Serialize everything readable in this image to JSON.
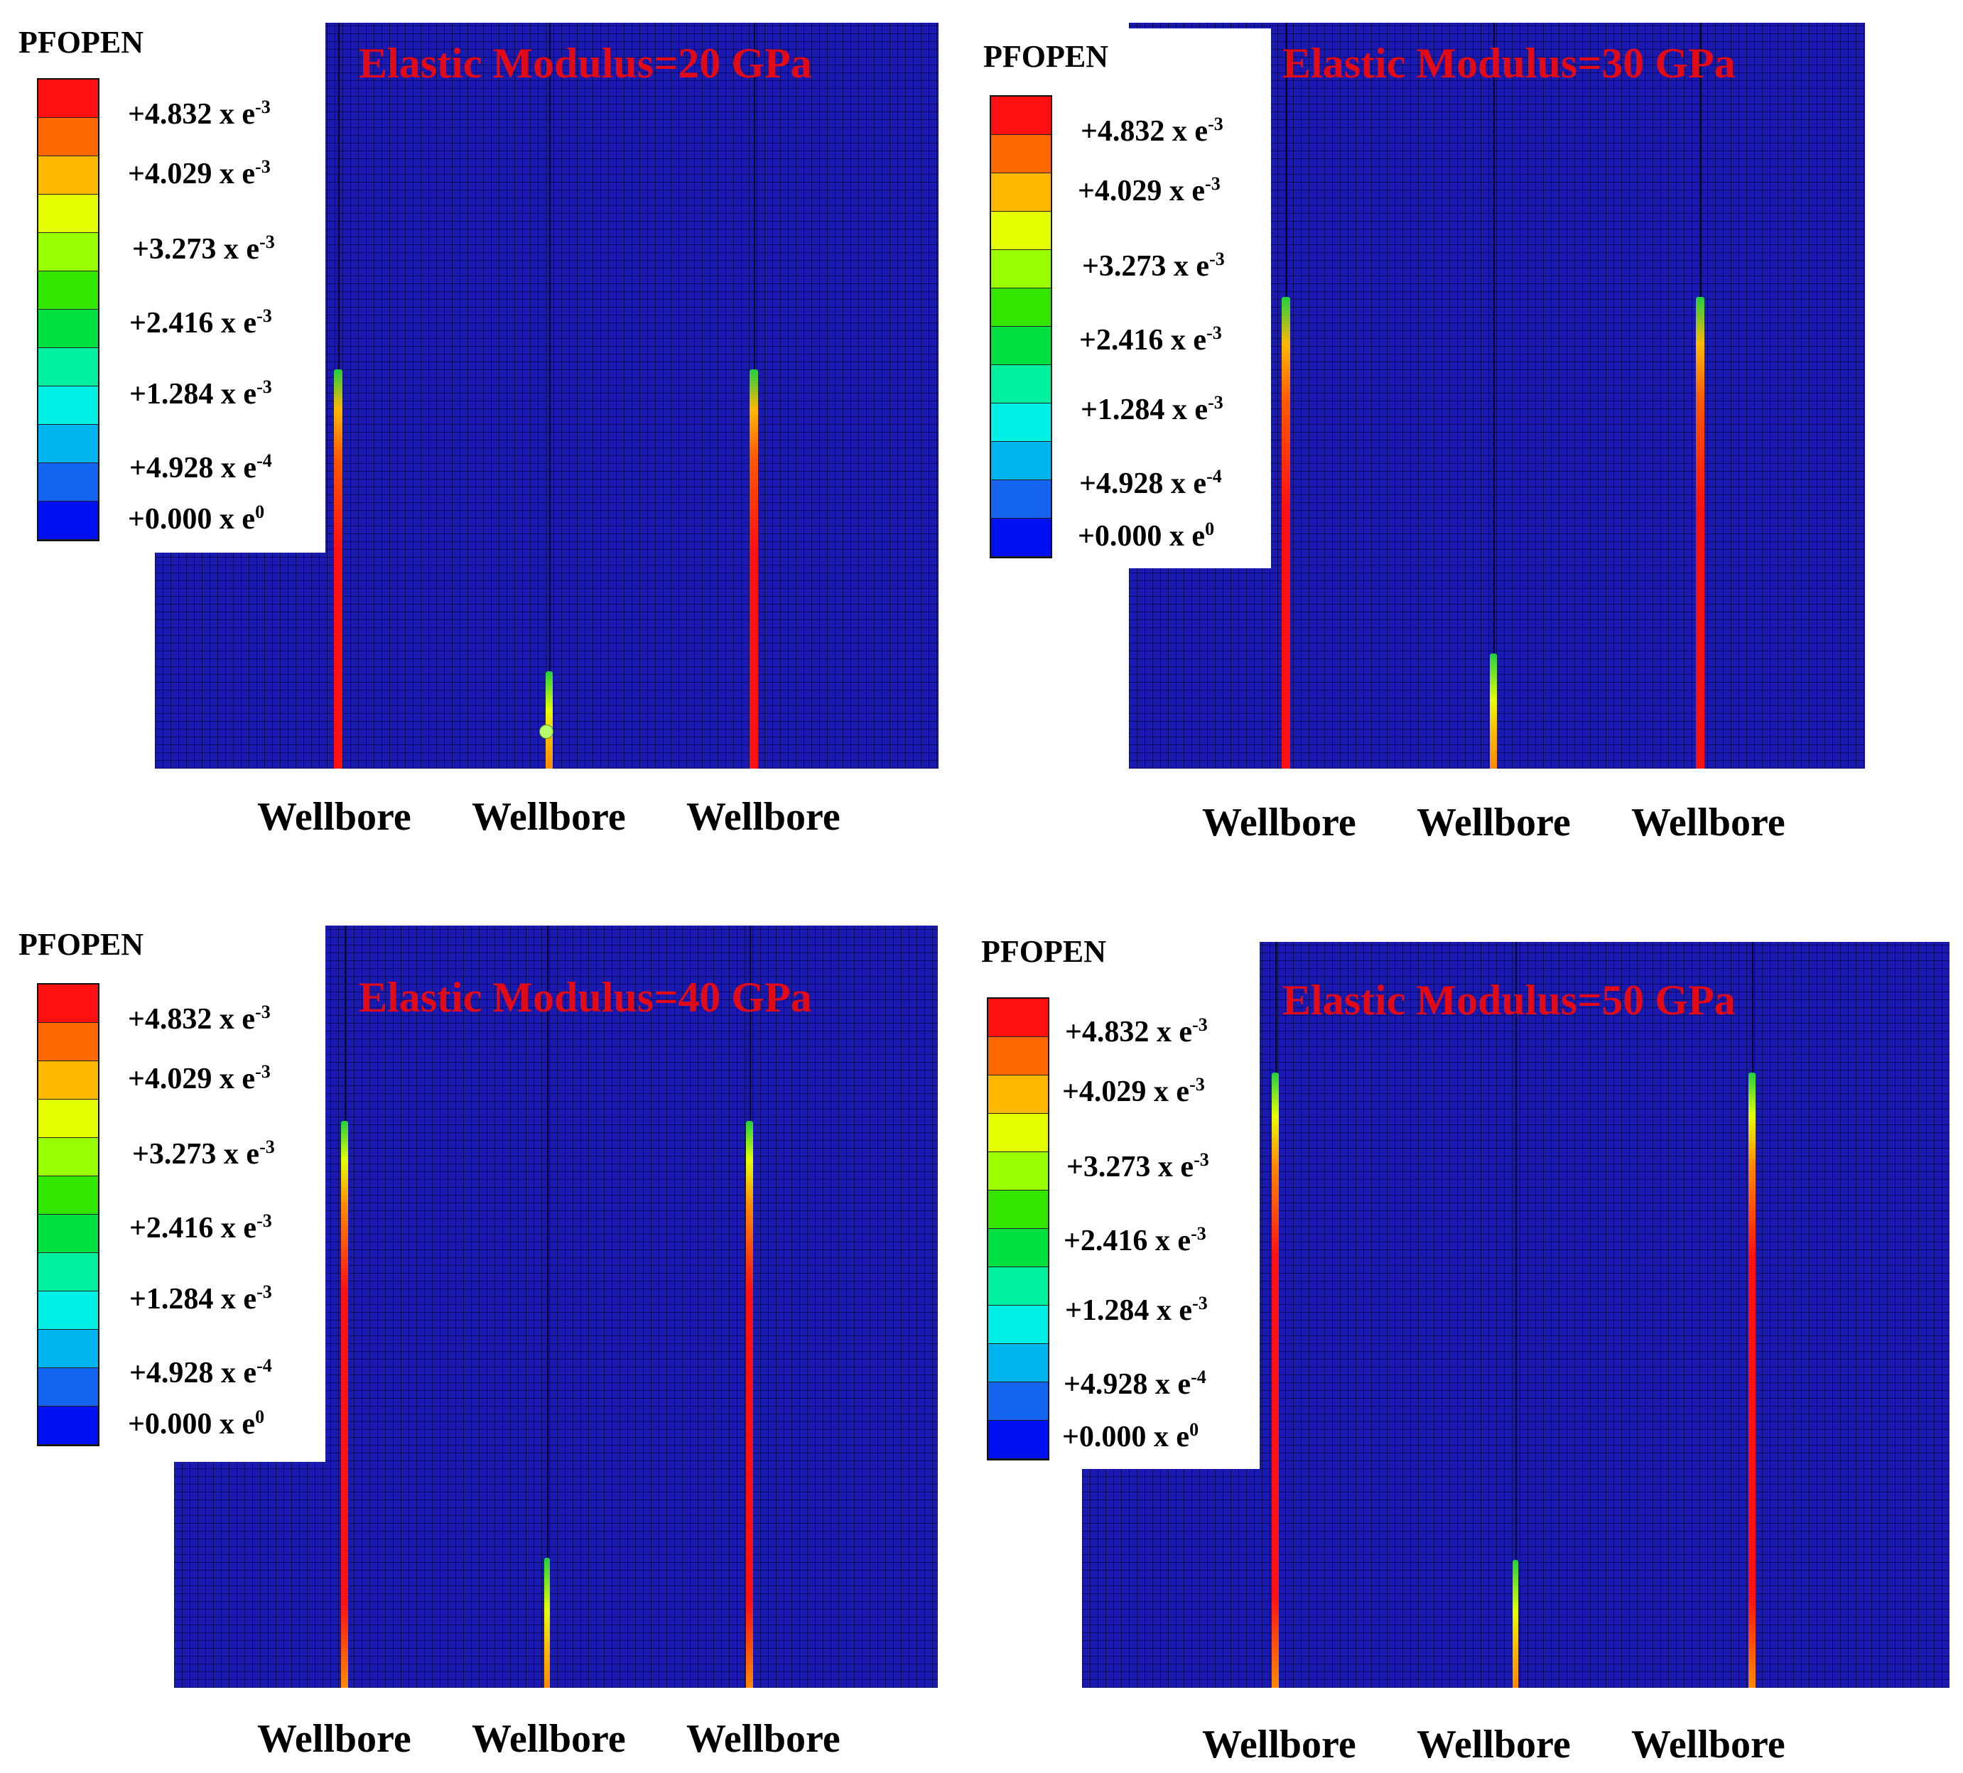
{
  "colors": {
    "mesh": "#1a1ab0",
    "title": "#e00b16",
    "scale": [
      "#ff1010",
      "#ff6a00",
      "#ffb800",
      "#e6ff00",
      "#99ff00",
      "#33e600",
      "#00e040",
      "#00f0a0",
      "#00f0e6",
      "#00b4f0",
      "#1464f0",
      "#0010f0"
    ]
  },
  "legend": {
    "title": "PFOPEN",
    "labels": [
      {
        "text": "+4.832  x e",
        "exp": "-3"
      },
      {
        "text": "+4.029  x e",
        "exp": "-3"
      },
      {
        "text": "+3.273 x e",
        "exp": "-3"
      },
      {
        "text": "+2.416 x e",
        "exp": "-3"
      },
      {
        "text": "+1.284 x e",
        "exp": "-3"
      },
      {
        "text": "+4.928 x e",
        "exp": "-4"
      },
      {
        "text": "+0.000 x e",
        "exp": "0"
      }
    ]
  },
  "well_label": "Wellbore",
  "panels": [
    {
      "title": "Elastic Modulus=20 GPa",
      "wellbores": [
        "Wellbore",
        "Wellbore",
        "Wellbore"
      ]
    },
    {
      "title": "Elastic Modulus=30 GPa",
      "wellbores": [
        "Wellbore",
        "Wellbore",
        "Wellbore"
      ]
    },
    {
      "title": "Elastic Modulus=40 GPa",
      "wellbores": [
        "Wellbore",
        "Wellbore",
        "Wellbore"
      ]
    },
    {
      "title": "Elastic Modulus=50 GPa",
      "wellbores": [
        "Wellbore",
        "Wellbore",
        "Wellbore"
      ]
    }
  ]
}
